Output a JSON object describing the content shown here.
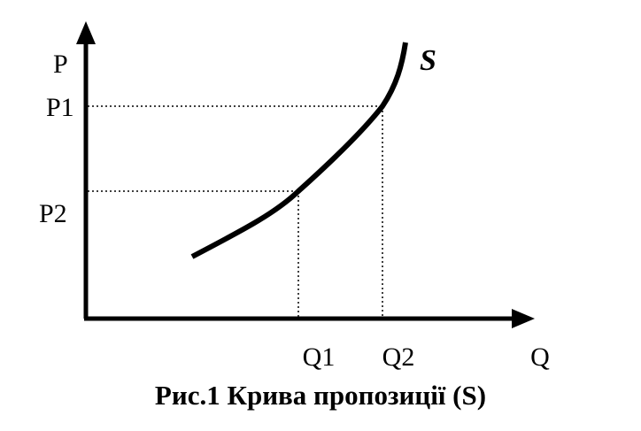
{
  "axes": {
    "y_label": "P",
    "x_label": "Q"
  },
  "price_levels": [
    "P1",
    "P2"
  ],
  "quantity_levels": [
    "Q1",
    "Q2"
  ],
  "curve_label": "S",
  "caption": "Рис.1 Крива пропозиції (S)"
}
